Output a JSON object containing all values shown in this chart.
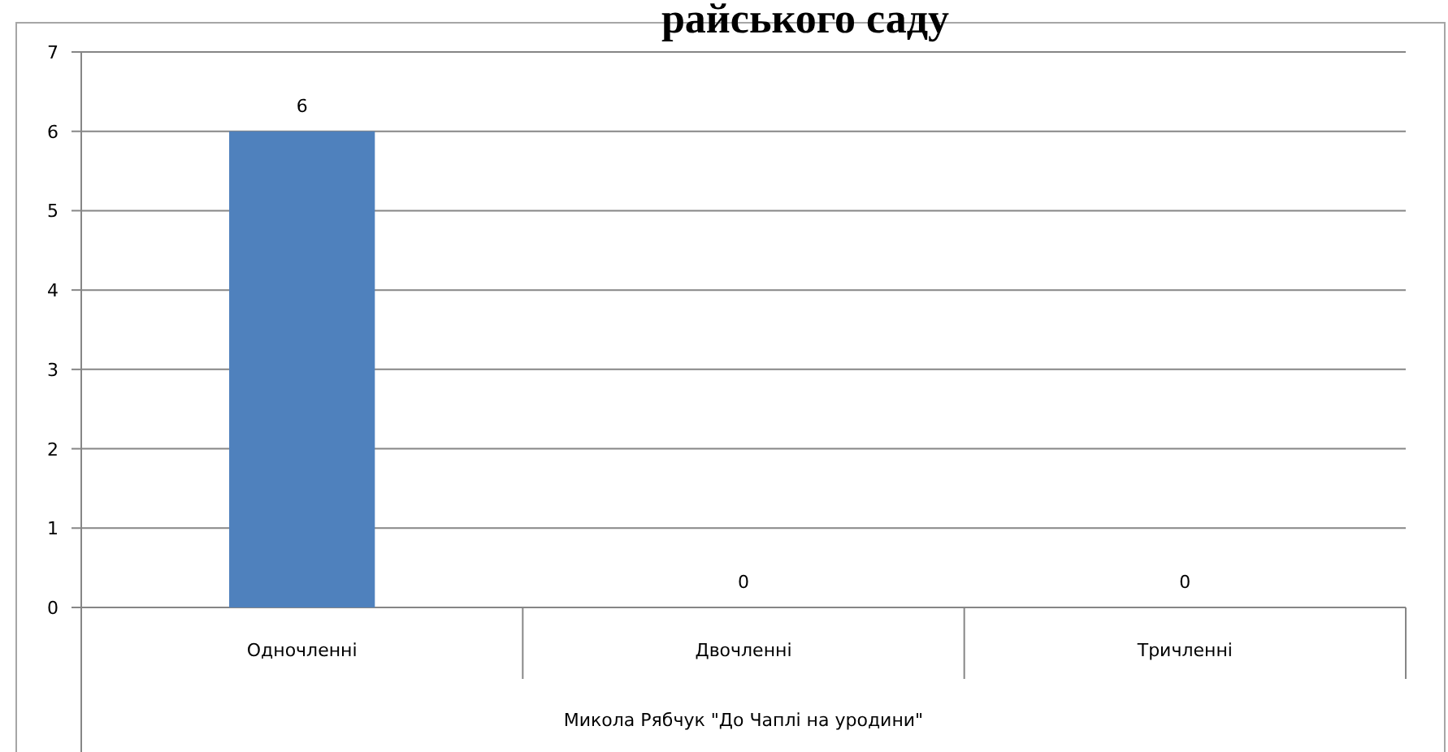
{
  "chart_data": {
    "type": "bar",
    "title": "райського саду",
    "xlabel": "Микола Рябчук \"До Чаплі на уродини\"",
    "categories": [
      "Одночленні",
      "Двочленні",
      "Тричленні"
    ],
    "values": [
      6,
      0,
      0
    ],
    "color": "#4f81bd",
    "ylim": [
      0,
      7
    ],
    "yticks": [
      0,
      1,
      2,
      3,
      4,
      5,
      6,
      7
    ],
    "grid": "y",
    "data_labels": true
  }
}
